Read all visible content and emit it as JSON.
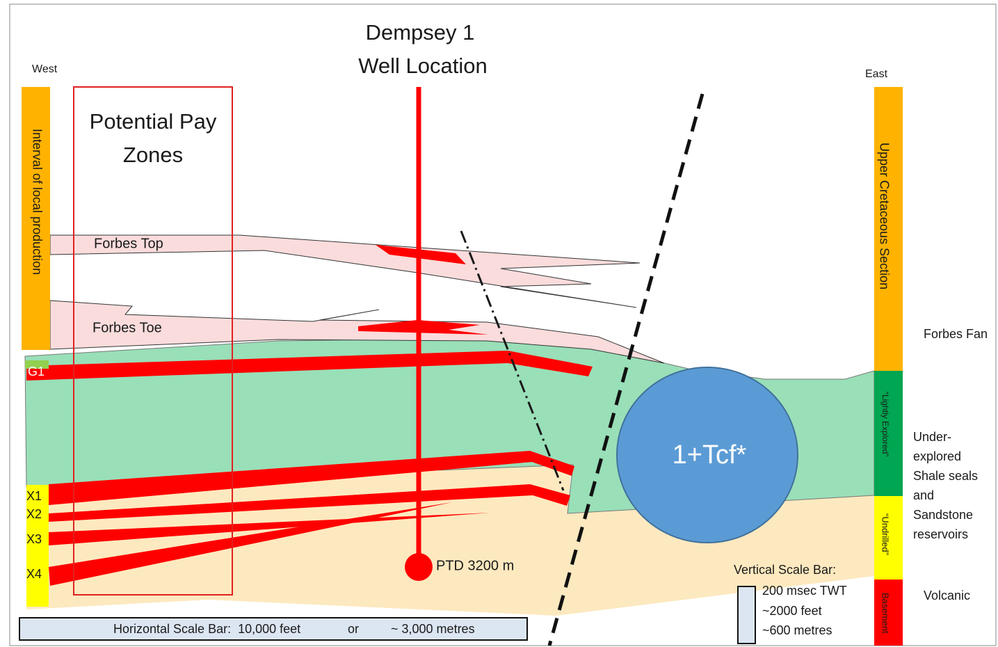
{
  "header": {
    "title_lines": [
      "Dempsey 1",
      "Well Location"
    ],
    "west": "West",
    "east": "East"
  },
  "left_column": {
    "label": "Interval of local production"
  },
  "pay_zones": {
    "label_lines": [
      "Potential Pay",
      "Zones"
    ]
  },
  "formations": {
    "forbes_top": "Forbes Top",
    "forbes_toe": "Forbes Toe"
  },
  "horizons": [
    "G1",
    "X1",
    "X2",
    "X3",
    "X4"
  ],
  "well": {
    "td_label": "PTD 3200 m"
  },
  "prospect": {
    "label": "1+Tcf*"
  },
  "right_column": {
    "segments": [
      "Upper Cretaceous Section",
      "“Lightly Explored”",
      "“Undrilled”",
      "Basement"
    ]
  },
  "right_notes": {
    "forbes_fan": "Forbes Fan",
    "under_explored": [
      "Under-",
      "explored",
      "Shale seals",
      "and",
      "Sandstone",
      "reservoirs"
    ],
    "volcanic": "Volcanic"
  },
  "vertical_scale": {
    "title": "Vertical Scale Bar:",
    "lines": [
      "200 msec TWT",
      "~2000 feet",
      "~600 metres"
    ]
  },
  "horizontal_scale": {
    "parts": [
      "Horizontal Scale Bar:  10,000 feet",
      "or",
      "~ 3,000 metres"
    ]
  }
}
